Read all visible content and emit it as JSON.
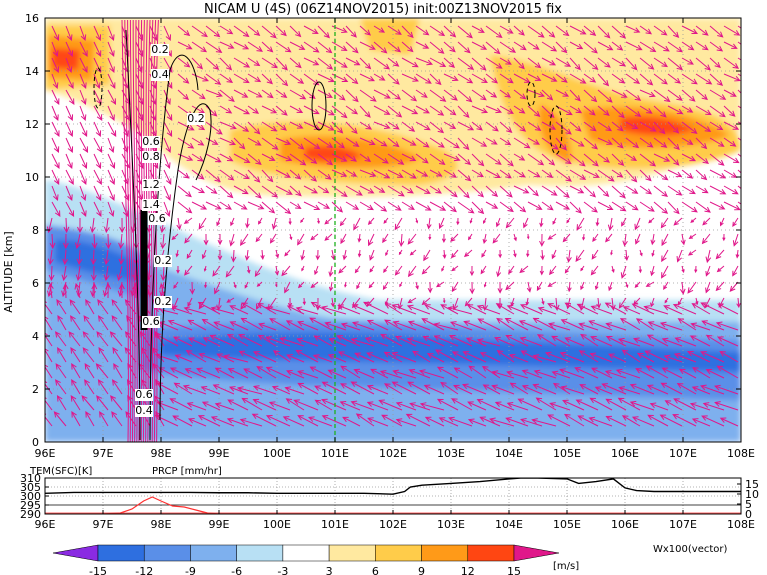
{
  "title": "NICAM U (4S) (06Z14NOV2015) init:00Z13NOV2015 fix",
  "colors": {
    "c_m15": "#8a2be2",
    "c_m12": "#2e6fe0",
    "c_m9": "#5a8fe8",
    "c_m6": "#7eb0ee",
    "c_m3": "#b8e0f4",
    "c_p3": "#ffe9a0",
    "c_p6": "#ffcc4a",
    "c_p9": "#ff9a18",
    "c_p12": "#ff4612",
    "c_p15": "#c8140c",
    "vector": "#e0178a",
    "marker": "#1db11d",
    "precip": "#ff3030",
    "temp": "#000000"
  },
  "chart_data": [
    {
      "type": "heatmap",
      "title": "NICAM U (4S) (06Z14NOV2015) init:00Z13NOV2015 fix",
      "ylabel": "ALTITUDE [km]",
      "xlabel": "",
      "x_ticks": [
        "96E",
        "97E",
        "98E",
        "99E",
        "100E",
        "101E",
        "102E",
        "103E",
        "104E",
        "105E",
        "106E",
        "107E",
        "108E"
      ],
      "y_ticks": [
        "0",
        "2",
        "4",
        "6",
        "8",
        "10",
        "12",
        "14",
        "16"
      ],
      "xlim": [
        96,
        108
      ],
      "ylim": [
        0,
        16
      ],
      "marker_longitude": 101,
      "contour_labels": [
        "0.2",
        "0.4",
        "0.2",
        "0.6",
        "0.8",
        "1.2",
        "1.4",
        "0.6",
        "0.2",
        "0.2",
        "0.6",
        "0.6",
        "0.4"
      ],
      "colorbar": {
        "levels": [
          "-15",
          "-12",
          "-9",
          "-6",
          "-3",
          "3",
          "6",
          "9",
          "12",
          "15"
        ],
        "unit": "[m/s]"
      },
      "vector_label": "Wx100(vector)",
      "grid": true
    },
    {
      "type": "line",
      "left_label": "TEM(SFC)[K]",
      "right_label": "PRCP [mm/hr]",
      "left_ticks": [
        "310",
        "305",
        "300",
        "295",
        "290"
      ],
      "right_ticks": [
        "15",
        "10",
        "5",
        "0"
      ],
      "x_ticks": [
        "96E",
        "97E",
        "98E",
        "99E",
        "100E",
        "101E",
        "102E",
        "103E",
        "104E",
        "105E",
        "106E",
        "107E",
        "108E"
      ],
      "xlim": [
        96,
        108
      ],
      "series": [
        {
          "name": "TEM(SFC)[K]",
          "x": [
            96.0,
            96.5,
            97.0,
            97.5,
            98.0,
            98.5,
            99.0,
            99.5,
            100.0,
            100.5,
            101.0,
            101.5,
            102.0,
            102.2,
            102.3,
            102.5,
            103.0,
            103.5,
            104.0,
            104.2,
            104.5,
            105.0,
            105.2,
            105.5,
            105.8,
            106.0,
            106.2,
            106.5,
            107.0,
            107.5,
            108.0
          ],
          "y": [
            301.5,
            302.0,
            302.0,
            302.0,
            302.0,
            302.0,
            301.8,
            301.8,
            301.5,
            301.5,
            301.5,
            301.5,
            301.0,
            302.5,
            305.0,
            306.0,
            307.0,
            308.0,
            309.5,
            310.0,
            310.0,
            309.5,
            307.0,
            308.0,
            309.5,
            304.5,
            303.0,
            302.5,
            302.5,
            302.5,
            302.5
          ]
        },
        {
          "name": "PRCP [mm/hr]",
          "x": [
            96.0,
            97.0,
            97.3,
            97.5,
            97.7,
            97.85,
            98.0,
            98.2,
            98.4,
            98.6,
            98.8,
            99.0,
            99.5,
            108.0
          ],
          "y": [
            0,
            0,
            0.5,
            2.5,
            6.5,
            8.5,
            6.5,
            4.0,
            3.5,
            2.0,
            0.5,
            0,
            0,
            0
          ]
        }
      ]
    }
  ]
}
